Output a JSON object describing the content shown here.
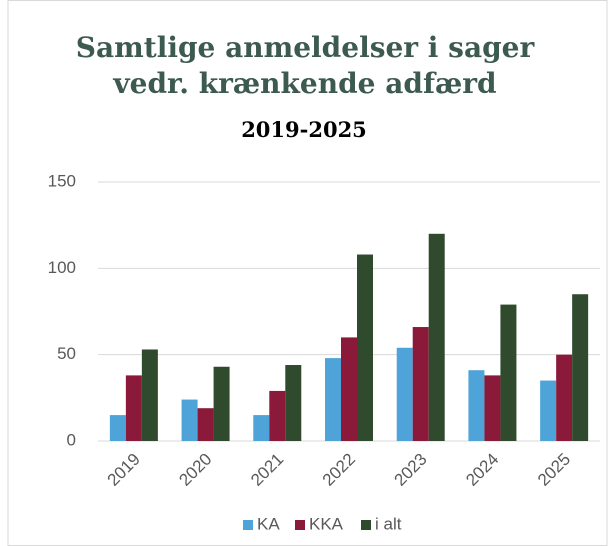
{
  "chart_data": {
    "type": "bar",
    "title": "Samtlige anmeldelser i sager vedr. krænkende adfærd",
    "subtitle": "2019-2025",
    "categories": [
      "2019",
      "2020",
      "2021",
      "2022",
      "2023",
      "2024",
      "2025"
    ],
    "series": [
      {
        "name": "KA",
        "color": "#4ea3d8",
        "values": [
          15,
          24,
          15,
          48,
          54,
          41,
          35
        ]
      },
      {
        "name": "KKA",
        "color": "#8b1a3a",
        "values": [
          38,
          19,
          29,
          60,
          66,
          38,
          50
        ]
      },
      {
        "name": "i alt",
        "color": "#2f4a2c",
        "values": [
          53,
          43,
          44,
          108,
          120,
          79,
          85
        ]
      }
    ],
    "ylim": [
      0,
      150
    ],
    "yticks": [
      0,
      50,
      100,
      150
    ],
    "grid": true,
    "legend": "bottom"
  }
}
